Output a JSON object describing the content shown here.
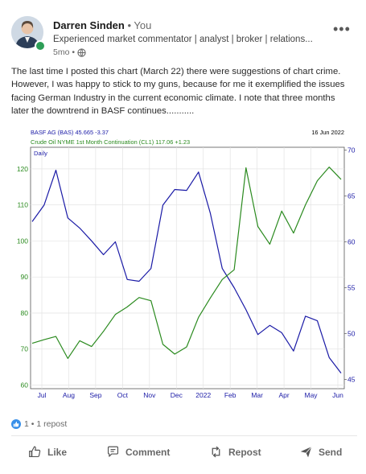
{
  "post": {
    "author_name": "Darren Sinden",
    "relation": " • You",
    "headline": "Experienced market commentator | analyst | broker | relations...",
    "time": "5mo •",
    "more_icon": "more-horizontal-icon",
    "text": [
      "The last time I posted this chart (March 22) there were suggestions of chart crime.",
      "However, I was happy to stick to my guns, because for me it exemplified the issues",
      "facing German Industry in the current economic climate. I note that three months",
      "later the downtrend in BASF continues..........."
    ]
  },
  "chart_data": {
    "type": "line",
    "date_label": "16 Jun 2022",
    "period_label": "Daily",
    "series": [
      {
        "name": "BASF AG (BAS) 45.665 -3.37",
        "color": "#1a1aa6",
        "axis": "right",
        "values": [
          62.2,
          64.0,
          67.8,
          62.6,
          61.5,
          60.1,
          58.6,
          60.0,
          55.9,
          55.7,
          57.1,
          64.0,
          65.7,
          65.6,
          67.6,
          63.1,
          57.1,
          55.0,
          52.6,
          49.9,
          50.9,
          50.1,
          48.1,
          51.9,
          51.4,
          47.4,
          45.7
        ]
      },
      {
        "name": "Crude Oil NYME 1st Month Continuation (CL1) 117.06 +1.23",
        "color": "#2a8a1e",
        "axis": "left",
        "values": [
          71.6,
          72.6,
          73.5,
          67.4,
          72.3,
          70.7,
          74.9,
          79.6,
          81.7,
          84.3,
          83.4,
          71.3,
          68.6,
          70.6,
          78.8,
          84.2,
          89.3,
          92.0,
          120.3,
          104.0,
          99.1,
          108.3,
          102.2,
          110.0,
          116.7,
          120.5,
          117.1
        ]
      }
    ],
    "left_axis": {
      "ticks": [
        60,
        70,
        80,
        90,
        100,
        110,
        120
      ],
      "range": [
        59,
        126
      ]
    },
    "right_axis": {
      "ticks": [
        45,
        50,
        55,
        60,
        65,
        70
      ],
      "range": [
        44,
        70.3
      ]
    },
    "x_axis": {
      "ticks": [
        "Jul",
        "Aug",
        "Sep",
        "Oct",
        "Nov",
        "Dec",
        "2022",
        "Feb",
        "Mar",
        "Apr",
        "May",
        "Jun"
      ]
    }
  },
  "social": {
    "like_icon": "like-reaction-icon",
    "reactions": "1 • 1 repost"
  },
  "actions": [
    {
      "label": "Like",
      "icon": "thumbs-up-icon"
    },
    {
      "label": "Comment",
      "icon": "comment-icon"
    },
    {
      "label": "Repost",
      "icon": "repost-icon"
    },
    {
      "label": "Send",
      "icon": "send-icon"
    }
  ]
}
